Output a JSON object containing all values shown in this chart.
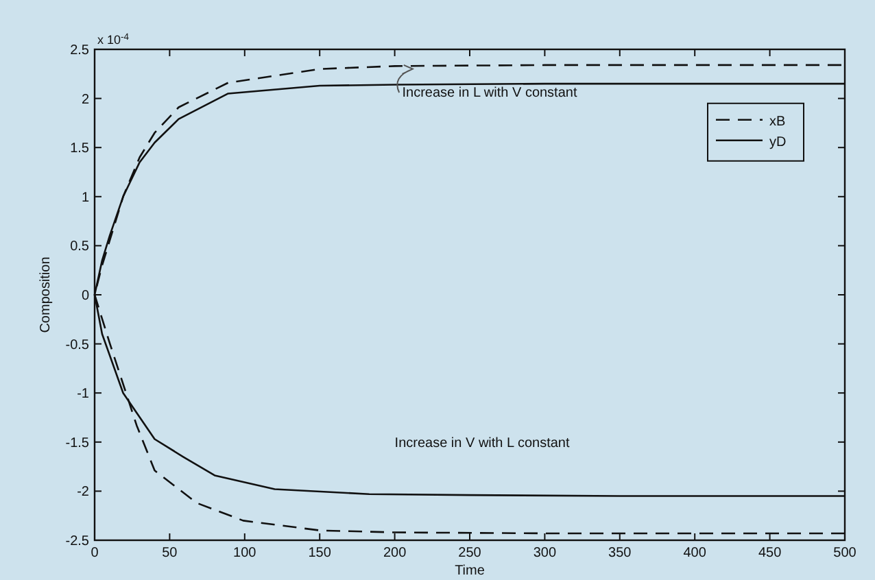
{
  "chart_data": {
    "type": "line",
    "xlabel": "Time",
    "ylabel": "Composition",
    "annotations": [
      "x 10$^{-4}$",
      "Increase in L with V constant",
      "Increase in V with L constant"
    ],
    "xlim": [
      0,
      500
    ],
    "ylim": [
      -2.5,
      2.5
    ],
    "xticks": [
      0,
      50,
      100,
      150,
      200,
      250,
      300,
      350,
      400,
      450,
      500
    ],
    "yticks": [
      -2.5,
      -2,
      -1.5,
      -1,
      -0.5,
      0,
      0.5,
      1,
      1.5,
      2,
      2.5
    ],
    "grid": false,
    "legend": "top right",
    "series": [
      {
        "name": "xB",
        "color": "#111111",
        "line_style": "dashed",
        "x": [
          500,
          400,
          300,
          200,
          150,
          99,
          68,
          40,
          28,
          10,
          0,
          5,
          10,
          19,
          30,
          40,
          56,
          89,
          150,
          200,
          300,
          400,
          500
        ],
        "values": [
          -2.43,
          -2.43,
          -2.43,
          -2.42,
          -2.4,
          -2.3,
          -2.12,
          -1.79,
          -1.33,
          -0.49,
          0,
          0.3,
          0.55,
          1.0,
          1.4,
          1.65,
          1.91,
          2.16,
          2.3,
          2.33,
          2.34,
          2.34,
          2.34
        ]
      },
      {
        "name": "yD",
        "color": "#111111",
        "line_style": "solid",
        "x": [
          500,
          350,
          250,
          183,
          120,
          80,
          59,
          40,
          19,
          5,
          0,
          5,
          10,
          19,
          30,
          40,
          56,
          89,
          150,
          200,
          300,
          400,
          500
        ],
        "values": [
          -2.05,
          -2.05,
          -2.04,
          -2.03,
          -1.98,
          -1.84,
          -1.65,
          -1.47,
          -1.0,
          -0.4,
          0,
          0.35,
          0.6,
          1.0,
          1.35,
          1.55,
          1.79,
          2.05,
          2.13,
          2.14,
          2.15,
          2.15,
          2.15
        ]
      }
    ]
  }
}
